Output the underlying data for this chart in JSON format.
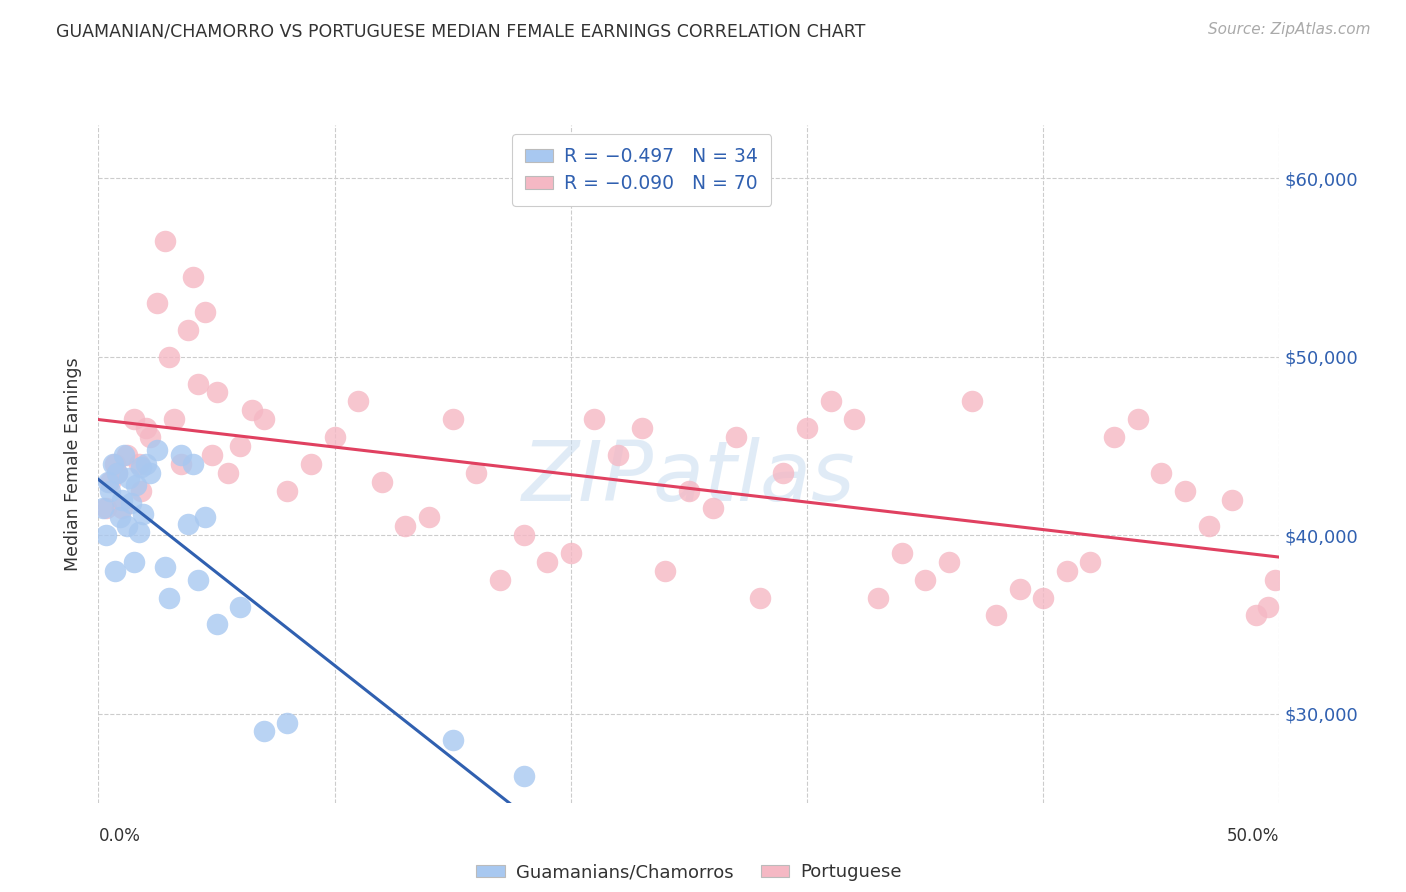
{
  "title": "GUAMANIAN/CHAMORRO VS PORTUGUESE MEDIAN FEMALE EARNINGS CORRELATION CHART",
  "source": "Source: ZipAtlas.com",
  "ylabel": "Median Female Earnings",
  "y_tick_labels": [
    "$30,000",
    "$40,000",
    "$50,000",
    "$60,000"
  ],
  "y_tick_values": [
    30000,
    40000,
    50000,
    60000
  ],
  "y_min": 25000,
  "y_max": 63000,
  "x_min": 0.0,
  "x_max": 0.5,
  "legend_label_blue": "Guamanians/Chamorros",
  "legend_label_pink": "Portuguese",
  "blue_color": "#A8C8F0",
  "pink_color": "#F5B8C4",
  "blue_line_color": "#3060B0",
  "pink_line_color": "#E04060",
  "watermark": "ZIPatlas",
  "blue_x": [
    0.002,
    0.003,
    0.004,
    0.005,
    0.006,
    0.007,
    0.008,
    0.009,
    0.01,
    0.011,
    0.012,
    0.013,
    0.014,
    0.015,
    0.016,
    0.017,
    0.018,
    0.019,
    0.02,
    0.022,
    0.025,
    0.028,
    0.03,
    0.035,
    0.038,
    0.04,
    0.042,
    0.045,
    0.05,
    0.06,
    0.07,
    0.08,
    0.15,
    0.18
  ],
  "blue_y": [
    41500,
    40000,
    43000,
    42500,
    44000,
    38000,
    43500,
    41000,
    42000,
    44500,
    40500,
    43200,
    41800,
    38500,
    42800,
    40200,
    43800,
    41200,
    44000,
    43500,
    44800,
    38200,
    36500,
    44500,
    40600,
    44000,
    37500,
    41000,
    35000,
    36000,
    29000,
    29500,
    28500,
    26500
  ],
  "pink_x": [
    0.003,
    0.005,
    0.007,
    0.008,
    0.01,
    0.012,
    0.015,
    0.017,
    0.018,
    0.02,
    0.022,
    0.025,
    0.028,
    0.03,
    0.032,
    0.035,
    0.038,
    0.04,
    0.042,
    0.045,
    0.048,
    0.05,
    0.055,
    0.06,
    0.065,
    0.07,
    0.08,
    0.09,
    0.1,
    0.11,
    0.12,
    0.13,
    0.14,
    0.15,
    0.16,
    0.17,
    0.18,
    0.19,
    0.2,
    0.21,
    0.22,
    0.23,
    0.24,
    0.25,
    0.26,
    0.27,
    0.28,
    0.29,
    0.3,
    0.31,
    0.32,
    0.33,
    0.34,
    0.35,
    0.36,
    0.37,
    0.38,
    0.39,
    0.4,
    0.41,
    0.42,
    0.43,
    0.44,
    0.45,
    0.46,
    0.47,
    0.48,
    0.49,
    0.495,
    0.498
  ],
  "pink_y": [
    41500,
    43000,
    44000,
    43500,
    41500,
    44500,
    46500,
    44000,
    42500,
    46000,
    45500,
    53000,
    56500,
    50000,
    46500,
    44000,
    51500,
    54500,
    48500,
    52500,
    44500,
    48000,
    43500,
    45000,
    47000,
    46500,
    42500,
    44000,
    45500,
    47500,
    43000,
    40500,
    41000,
    46500,
    43500,
    37500,
    40000,
    38500,
    39000,
    46500,
    44500,
    46000,
    38000,
    42500,
    41500,
    45500,
    36500,
    43500,
    46000,
    47500,
    46500,
    36500,
    39000,
    37500,
    38500,
    47500,
    35500,
    37000,
    36500,
    38000,
    38500,
    45500,
    46500,
    43500,
    42500,
    40500,
    42000,
    35500,
    36000,
    37500
  ]
}
